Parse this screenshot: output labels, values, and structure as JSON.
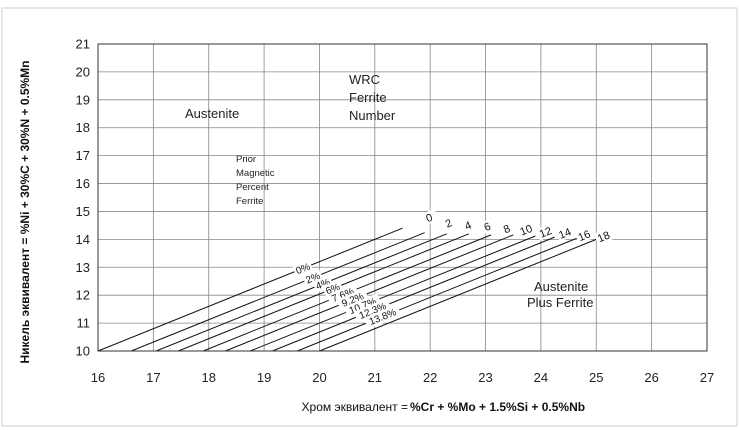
{
  "chart_data": {
    "type": "line",
    "xlim": [
      16,
      27
    ],
    "ylim": [
      10,
      21
    ],
    "x_ticks": [
      16,
      17,
      18,
      19,
      20,
      21,
      22,
      23,
      24,
      25,
      26,
      27
    ],
    "y_ticks": [
      10,
      11,
      12,
      13,
      14,
      15,
      16,
      17,
      18,
      19,
      20,
      21
    ],
    "grid": true,
    "xlabel": {
      "prefix": "Хром эквивалент = ",
      "formula": "%Cr + %Mo + 1.5%Si + 0.5%Nb"
    },
    "ylabel": "Никель эквивалент = %Ni + 30%C + 30%N + 0.5%Mn",
    "regions": {
      "austenite": "Austenite",
      "austenite_plus_ferrite": [
        "Austenite",
        "Plus Ferrite"
      ],
      "wrc_title": [
        "WRC",
        "Ferrite",
        "Number"
      ],
      "prior_title": [
        "Prior",
        "Magnetic",
        "Percent",
        "Ferrite"
      ]
    },
    "iso_lines": [
      {
        "x_start": 16.0,
        "x_end": 21.5,
        "fn": "0",
        "pct": "0%"
      },
      {
        "x_start": 16.6,
        "x_end": 21.9,
        "fn": "2",
        "pct": "2%"
      },
      {
        "x_start": 17.05,
        "x_end": 22.3,
        "fn": "4",
        "pct": "4%"
      },
      {
        "x_start": 17.45,
        "x_end": 22.7,
        "fn": "6",
        "pct": "6%"
      },
      {
        "x_start": 17.9,
        "x_end": 23.1,
        "fn": "8",
        "pct": "7.6%"
      },
      {
        "x_start": 18.3,
        "x_end": 23.5,
        "fn": "10",
        "pct": "9.2%"
      },
      {
        "x_start": 18.75,
        "x_end": 23.9,
        "fn": "12",
        "pct": "10.7%"
      },
      {
        "x_start": 19.15,
        "x_end": 24.25,
        "fn": "14",
        "pct": "12.3%"
      },
      {
        "x_start": 19.6,
        "x_end": 24.65,
        "fn": "16",
        "pct": "13.8%"
      },
      {
        "x_start": 20.0,
        "x_end": 25.05,
        "fn": "18",
        "pct": ""
      }
    ],
    "slope": 0.8
  }
}
